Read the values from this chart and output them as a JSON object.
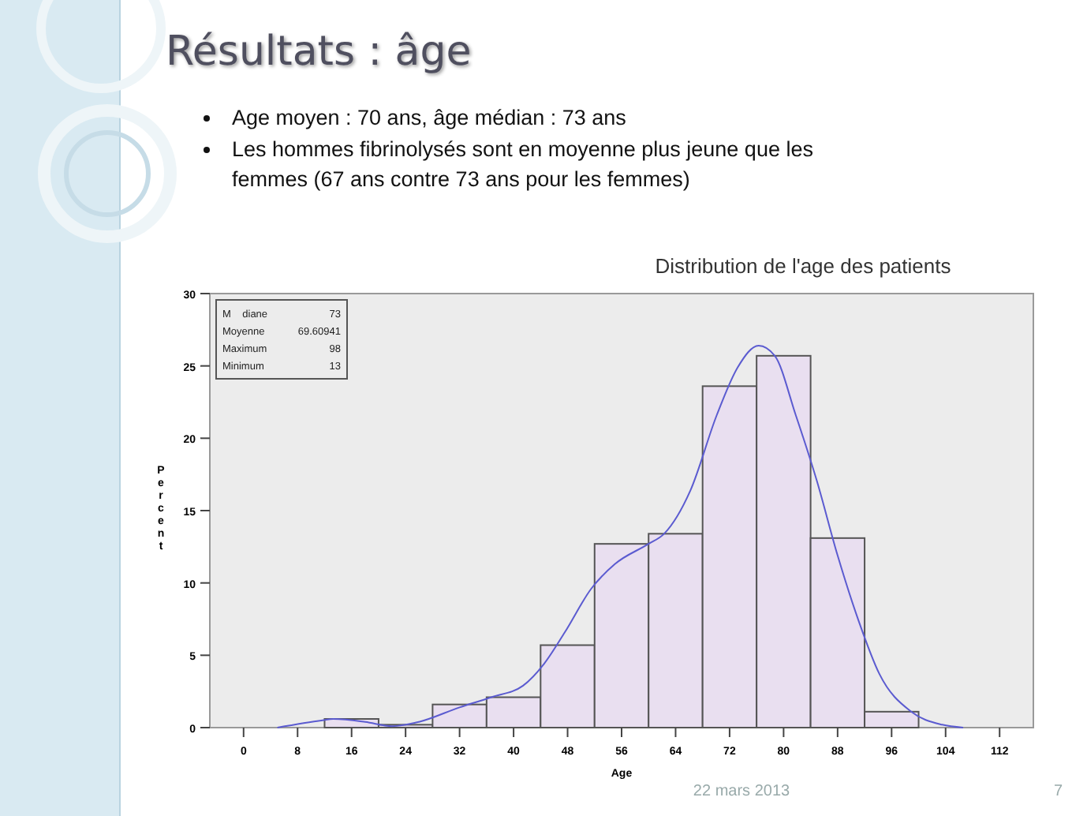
{
  "chart_data": {
    "type": "histogram",
    "title": "Distribution de l'age des patients",
    "xlabel": "Age",
    "ylabel": "Percent",
    "bins": [
      12,
      20,
      28,
      36,
      44,
      52,
      60,
      68,
      76,
      84,
      92,
      100
    ],
    "values": [
      0.6,
      0.2,
      1.6,
      2.1,
      5.7,
      12.7,
      13.4,
      23.6,
      25.7,
      13.1,
      1.1
    ],
    "color": "#e9dff0",
    "series": [
      {
        "type": "line",
        "color": "#5b5bd0",
        "x": [
          5,
          11.7,
          13.3,
          18,
          22,
          26,
          32,
          36.7,
          41.4,
          44.5,
          47.6,
          51.5,
          55,
          60,
          62.3,
          66.2,
          70.1,
          73.2,
          76.3,
          78.7,
          81.8,
          84.9,
          88,
          91.1,
          94.2,
          98.9,
          103.5,
          106.6
        ],
        "values": [
          0,
          0.5,
          0.6,
          0.4,
          0.1,
          0.4,
          1.4,
          2.1,
          2.9,
          4.4,
          6.6,
          9.6,
          11.3,
          12.7,
          13.4,
          16.4,
          21.6,
          24.9,
          26.4,
          25.7,
          21.6,
          17.1,
          11.9,
          7.4,
          3.7,
          1.1,
          0.2,
          0
        ]
      }
    ],
    "xlim": [
      -5,
      117
    ],
    "xticks": [
      0,
      8,
      16,
      24,
      32,
      40,
      48,
      56,
      64,
      72,
      80,
      88,
      96,
      104,
      112
    ],
    "ylim": [
      0,
      30
    ],
    "yticks": [
      0,
      5,
      10,
      15,
      20,
      25,
      30
    ],
    "grid": false,
    "marker": "none",
    "annotations": [
      "Résultats : âge",
      "Age moyen : 70 ans, âge médian : 73 ans",
      "Les hommes fibrinolysés sont en moyenne plus jeune que les femmes (67 ans contre 73 ans pour les femmes)",
      "M    diane 73",
      "Moyenne 69.60941",
      "Maximum 98",
      "Minimum 13",
      "22 mars 2013",
      "7"
    ]
  }
}
